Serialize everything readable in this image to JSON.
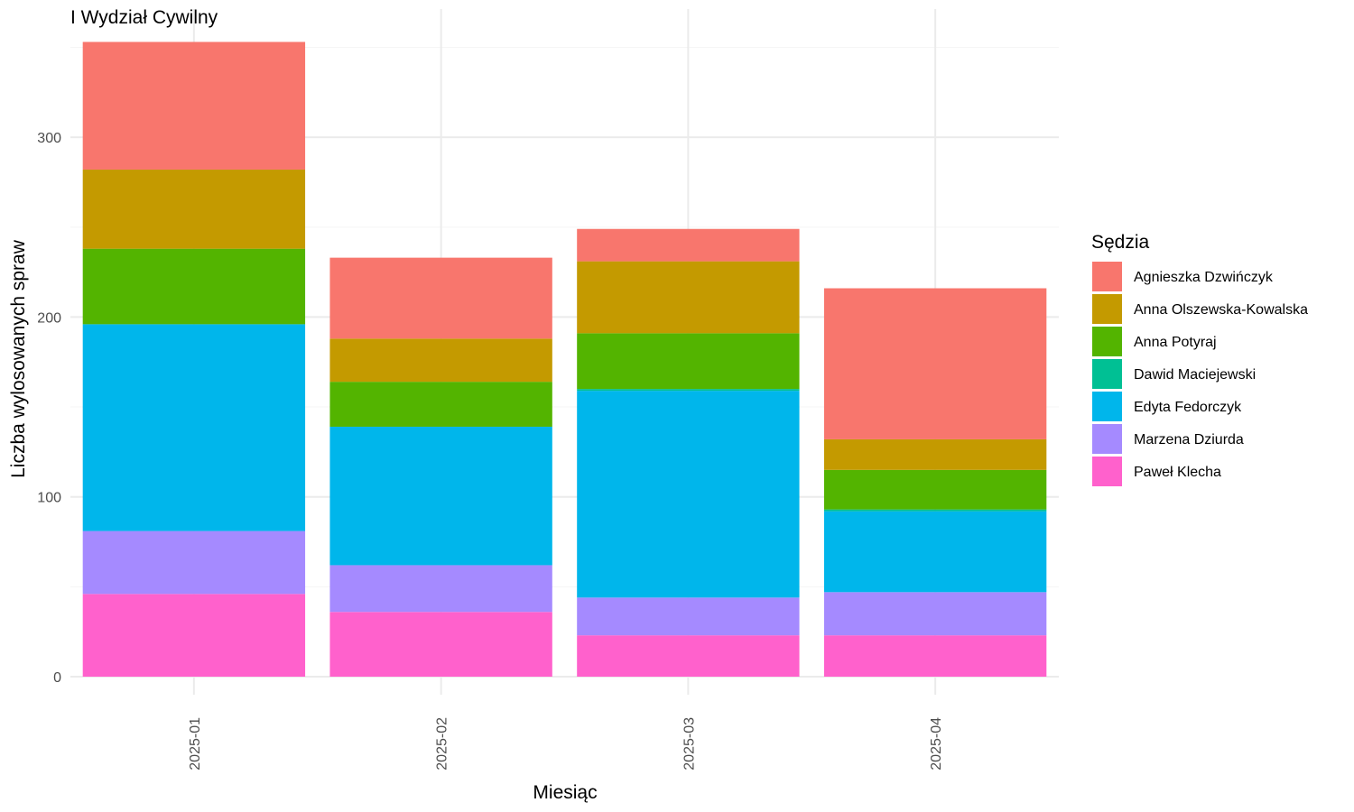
{
  "chart_data": {
    "type": "bar",
    "stacked": true,
    "title": "I Wydział Cywilny",
    "xlabel": "Miesiąc",
    "ylabel": "Liczba wylosowanych spraw",
    "categories": [
      "2025-01",
      "2025-02",
      "2025-03",
      "2025-04"
    ],
    "ylim": [
      0,
      372
    ],
    "yticks": [
      0,
      100,
      200,
      300
    ],
    "grid": true,
    "legend": {
      "title": "Sędzia",
      "position": "right"
    },
    "series": [
      {
        "name": "Paweł Klecha",
        "color": "#FF61CC",
        "values": [
          46,
          36,
          23,
          23
        ]
      },
      {
        "name": "Marzena Dziurda",
        "color": "#A58AFF",
        "values": [
          35,
          26,
          21,
          24
        ]
      },
      {
        "name": "Edyta Fedorczyk",
        "color": "#00B6EB",
        "values": [
          115,
          77,
          115,
          45
        ]
      },
      {
        "name": "Dawid Maciejewski",
        "color": "#00C094",
        "values": [
          0,
          0,
          1,
          1
        ]
      },
      {
        "name": "Anna Potyraj",
        "color": "#53B400",
        "values": [
          42,
          25,
          31,
          22
        ]
      },
      {
        "name": "Anna Olszewska-Kowalska",
        "color": "#C49A00",
        "values": [
          44,
          24,
          40,
          17
        ]
      },
      {
        "name": "Agnieszka Dzwińczyk",
        "color": "#F8766D",
        "values": [
          71,
          45,
          18,
          84
        ]
      }
    ],
    "legend_order": [
      "Agnieszka Dzwińczyk",
      "Anna Olszewska-Kowalska",
      "Anna Potyraj",
      "Dawid Maciejewski",
      "Edyta Fedorczyk",
      "Marzena Dziurda",
      "Paweł Klecha"
    ]
  }
}
